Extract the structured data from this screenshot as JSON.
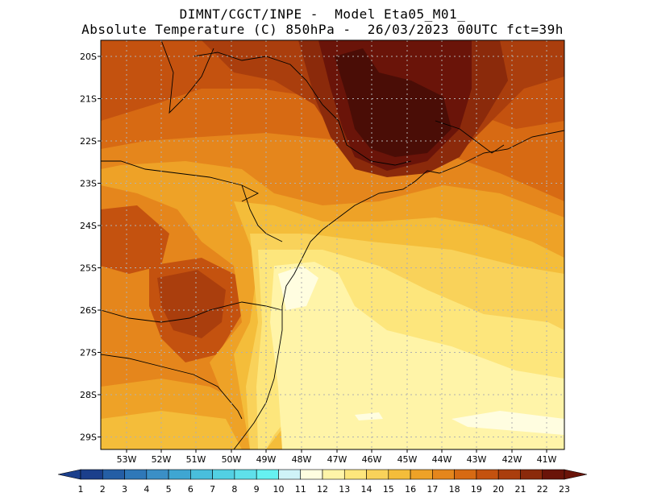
{
  "title": {
    "line1": "DIMNT/CGCT/INPE -  Model Eta05_M01_",
    "line2": "Absolute Temperature (C) 850hPa -  26/03/2023 00UTC fct=39h"
  },
  "map": {
    "lat_labels": [
      "20S",
      "21S",
      "22S",
      "23S",
      "24S",
      "25S",
      "26S",
      "27S",
      "28S",
      "29S"
    ],
    "lon_labels": [
      "53W",
      "52W",
      "51W",
      "50W",
      "49W",
      "48W",
      "47W",
      "46W",
      "45W",
      "44W",
      "43W",
      "42W",
      "41W"
    ],
    "gridlines": true
  },
  "colorbar": {
    "labels": [
      "1",
      "2",
      "3",
      "4",
      "5",
      "6",
      "7",
      "8",
      "9",
      "10",
      "11",
      "12",
      "13",
      "14",
      "15",
      "16",
      "17",
      "18",
      "19",
      "20",
      "21",
      "22",
      "23"
    ],
    "colors": [
      "#1b3f8c",
      "#245ea5",
      "#2f78b8",
      "#3b8fc6",
      "#3fa6d2",
      "#49bedc",
      "#52d0e3",
      "#5fe0ea",
      "#66f1f1",
      "#cff3f8",
      "#fffde0",
      "#fff4a8",
      "#fde67c",
      "#f9d25a",
      "#f4bd3a",
      "#eea227",
      "#e5861c",
      "#d76a13",
      "#c4520f",
      "#aa3e0d",
      "#8b2a0b",
      "#6a1409"
    ]
  }
}
